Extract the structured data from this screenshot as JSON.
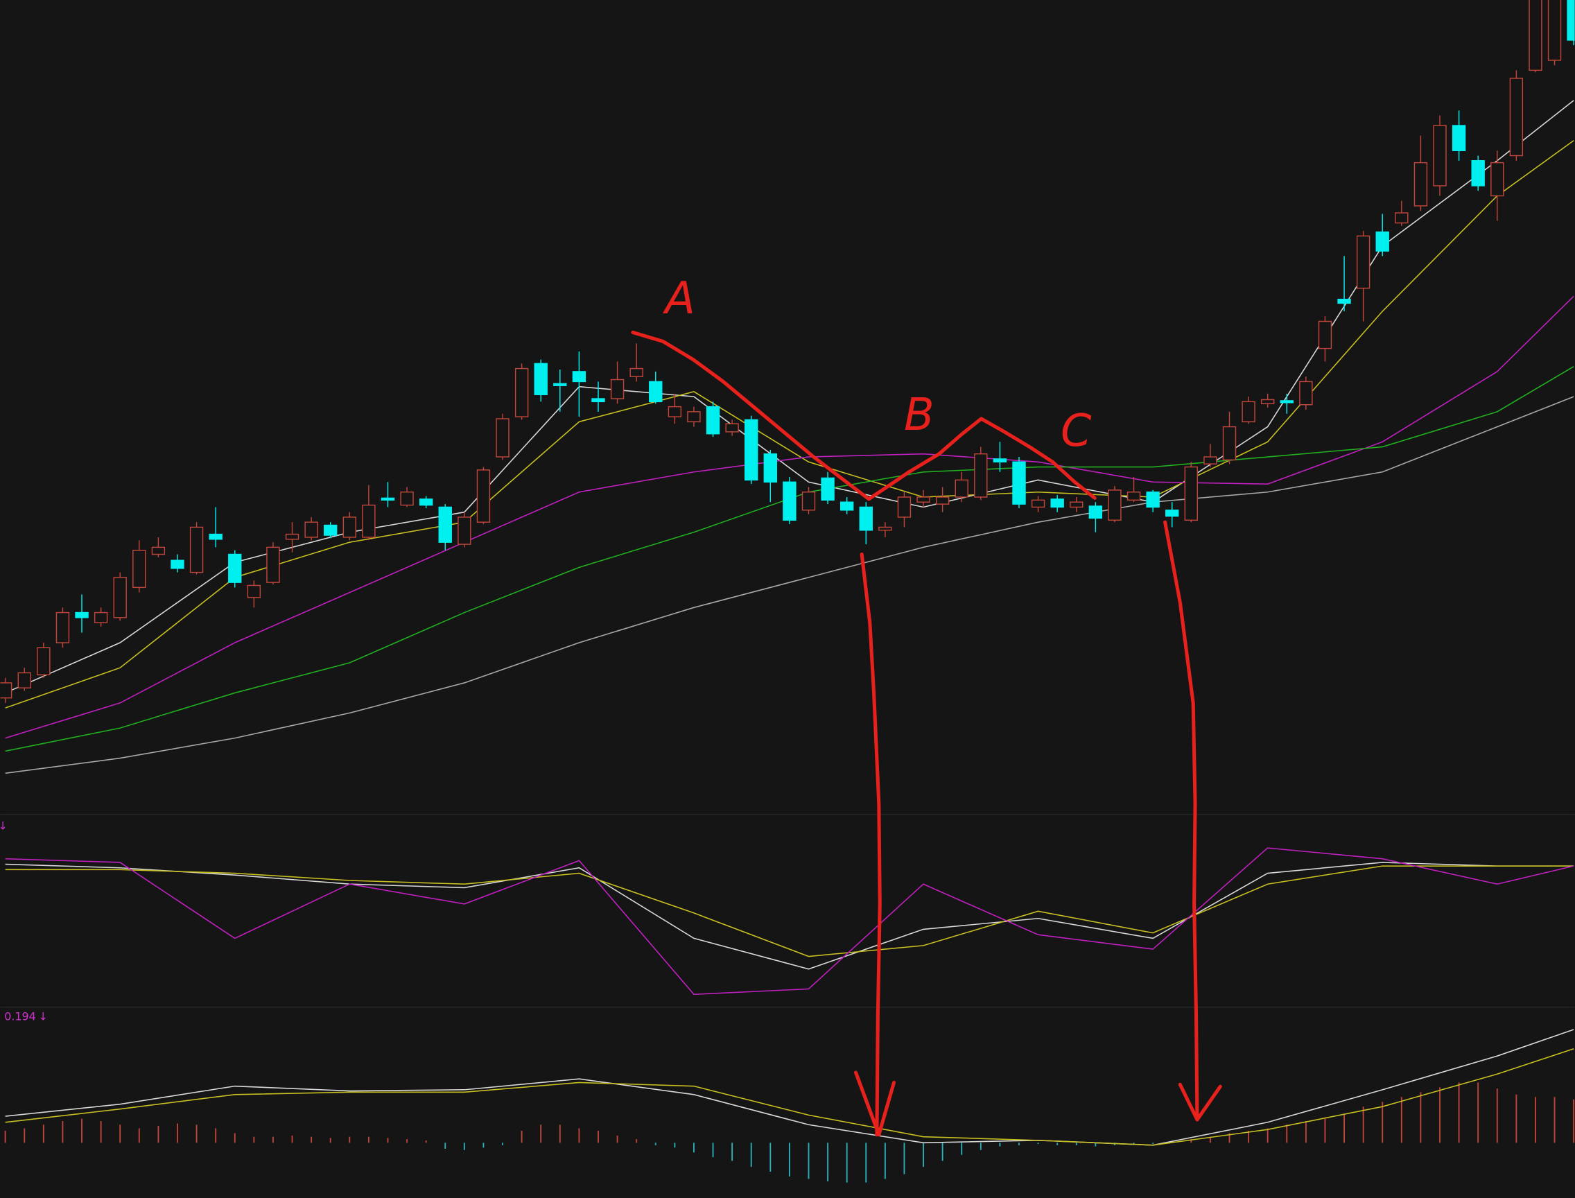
{
  "chart_data": [
    {
      "type": "candlestick",
      "xlim": [
        0,
        82
      ],
      "ylim": [
        0,
        800
      ],
      "up_color": "#c0453a",
      "down_color": "#00f0f0",
      "candles": [
        [
          105,
          125,
          100,
          120
        ],
        [
          115,
          135,
          112,
          130
        ],
        [
          128,
          160,
          125,
          155
        ],
        [
          160,
          195,
          155,
          190
        ],
        [
          190,
          208,
          170,
          185
        ],
        [
          180,
          195,
          176,
          190
        ],
        [
          185,
          230,
          182,
          225
        ],
        [
          215,
          262,
          210,
          252
        ],
        [
          248,
          265,
          245,
          255
        ],
        [
          242,
          248,
          230,
          234
        ],
        [
          230,
          280,
          228,
          275
        ],
        [
          268,
          295,
          255,
          263
        ],
        [
          248,
          252,
          215,
          220
        ],
        [
          205,
          222,
          195,
          217
        ],
        [
          220,
          260,
          218,
          255
        ],
        [
          263,
          280,
          250,
          268
        ],
        [
          265,
          285,
          262,
          280
        ],
        [
          277,
          280,
          264,
          267
        ],
        [
          265,
          290,
          262,
          285
        ],
        [
          265,
          317,
          262,
          297
        ],
        [
          304,
          320,
          295,
          302
        ],
        [
          297,
          315,
          295,
          310
        ],
        [
          303,
          306,
          294,
          297
        ],
        [
          295,
          298,
          252,
          260
        ],
        [
          258,
          290,
          255,
          285
        ],
        [
          280,
          335,
          278,
          332
        ],
        [
          345,
          388,
          342,
          383
        ],
        [
          385,
          438,
          382,
          433
        ],
        [
          438,
          442,
          400,
          407
        ],
        [
          418,
          432,
          390,
          416
        ],
        [
          430,
          450,
          385,
          420
        ],
        [
          403,
          420,
          390,
          400
        ],
        [
          403,
          440,
          398,
          422
        ],
        [
          425,
          458,
          420,
          433
        ],
        [
          420,
          430,
          398,
          400
        ],
        [
          385,
          408,
          378,
          395
        ],
        [
          380,
          395,
          375,
          390
        ],
        [
          395,
          400,
          365,
          368
        ],
        [
          370,
          382,
          366,
          378
        ],
        [
          382,
          386,
          318,
          322
        ],
        [
          348,
          352,
          300,
          320
        ],
        [
          320,
          325,
          278,
          282
        ],
        [
          292,
          315,
          288,
          310
        ],
        [
          324,
          330,
          298,
          302
        ],
        [
          300,
          305,
          288,
          292
        ],
        [
          295,
          300,
          258,
          272
        ],
        [
          272,
          280,
          265,
          275
        ],
        [
          285,
          310,
          275,
          305
        ],
        [
          300,
          312,
          295,
          305
        ],
        [
          298,
          315,
          290,
          305
        ],
        [
          305,
          330,
          300,
          322
        ],
        [
          305,
          355,
          302,
          348
        ],
        [
          343,
          360,
          330,
          340
        ],
        [
          340,
          345,
          294,
          298
        ],
        [
          295,
          306,
          290,
          302
        ],
        [
          303,
          307,
          290,
          295
        ],
        [
          295,
          305,
          290,
          300
        ],
        [
          296,
          300,
          270,
          284
        ],
        [
          282,
          316,
          280,
          312
        ],
        [
          302,
          325,
          300,
          310
        ],
        [
          310,
          312,
          290,
          295
        ],
        [
          292,
          300,
          275,
          286
        ],
        [
          282,
          340,
          280,
          335
        ],
        [
          338,
          358,
          335,
          345
        ],
        [
          342,
          390,
          338,
          375
        ],
        [
          380,
          405,
          378,
          400
        ],
        [
          398,
          408,
          394,
          402
        ],
        [
          401,
          408,
          388,
          399
        ],
        [
          397,
          425,
          392,
          420
        ],
        [
          453,
          485,
          440,
          480
        ],
        [
          502,
          545,
          490,
          498
        ],
        [
          513,
          570,
          480,
          565
        ],
        [
          569,
          587,
          545,
          550
        ],
        [
          578,
          600,
          575,
          588
        ],
        [
          595,
          665,
          590,
          638
        ],
        [
          615,
          685,
          605,
          675
        ],
        [
          675,
          690,
          640,
          650
        ],
        [
          640,
          645,
          610,
          615
        ],
        [
          605,
          650,
          580,
          638
        ],
        [
          645,
          730,
          640,
          722
        ],
        [
          730,
          830,
          728,
          810
        ],
        [
          740,
          830,
          735,
          810
        ],
        [
          810,
          830,
          755,
          760
        ]
      ],
      "series": [
        {
          "color": "#d8d8d8",
          "x": [
            0,
            6,
            12,
            18,
            24,
            30,
            36,
            42,
            48,
            54,
            60,
            66,
            72,
            78,
            82
          ],
          "values": [
            110,
            160,
            240,
            270,
            290,
            415,
            405,
            320,
            295,
            322,
            300,
            375,
            555,
            640,
            700
          ]
        },
        {
          "color": "#c8c020",
          "x": [
            0,
            6,
            12,
            18,
            24,
            30,
            36,
            42,
            48,
            54,
            60,
            66,
            72,
            78,
            82
          ],
          "values": [
            95,
            135,
            225,
            260,
            280,
            380,
            410,
            340,
            305,
            310,
            305,
            360,
            490,
            605,
            660
          ]
        },
        {
          "color": "#c020c0",
          "x": [
            0,
            6,
            12,
            18,
            24,
            30,
            36,
            42,
            48,
            54,
            60,
            66,
            72,
            78,
            82
          ],
          "values": [
            65,
            100,
            160,
            210,
            260,
            310,
            330,
            345,
            348,
            340,
            320,
            318,
            360,
            430,
            505
          ]
        },
        {
          "color": "#20b020",
          "x": [
            0,
            6,
            12,
            18,
            24,
            30,
            36,
            42,
            48,
            54,
            60,
            66,
            72,
            78,
            82
          ],
          "values": [
            52,
            75,
            110,
            140,
            190,
            235,
            270,
            310,
            330,
            335,
            335,
            345,
            355,
            390,
            435
          ]
        },
        {
          "color": "#a8a8a8",
          "x": [
            0,
            6,
            12,
            18,
            24,
            30,
            36,
            42,
            48,
            54,
            60,
            66,
            72,
            78,
            82
          ],
          "values": [
            30,
            45,
            65,
            90,
            120,
            160,
            195,
            225,
            255,
            280,
            300,
            310,
            330,
            375,
            405
          ]
        }
      ]
    },
    {
      "type": "line",
      "xlim": [
        0,
        82
      ],
      "ylim": [
        0,
        100
      ],
      "marker": "↓",
      "series": [
        {
          "color": "#d8d8d8",
          "x": [
            0,
            6,
            12,
            18,
            24,
            30,
            36,
            42,
            48,
            54,
            60,
            66,
            72,
            78,
            82
          ],
          "values": [
            83,
            81,
            77,
            72,
            70,
            81,
            42,
            25,
            47,
            53,
            42,
            78,
            84,
            82,
            82
          ]
        },
        {
          "color": "#c8c020",
          "x": [
            0,
            6,
            12,
            18,
            24,
            30,
            36,
            42,
            48,
            54,
            60,
            66,
            72,
            78,
            82
          ],
          "values": [
            80,
            80,
            78,
            74,
            72,
            78,
            56,
            32,
            38,
            57,
            45,
            72,
            82,
            82,
            82
          ]
        },
        {
          "color": "#c020c0",
          "x": [
            0,
            6,
            12,
            18,
            24,
            30,
            36,
            42,
            48,
            54,
            60,
            66,
            72,
            78,
            82
          ],
          "values": [
            86,
            84,
            42,
            72,
            61,
            85,
            11,
            14,
            72,
            44,
            36,
            92,
            86,
            72,
            82
          ]
        }
      ]
    },
    {
      "type": "macd",
      "xlim": [
        0,
        82
      ],
      "ylim": [
        -0.4,
        1.1
      ],
      "label": "0.194",
      "marker": "↓",
      "up_color": "#c0453a",
      "down_color": "#2ab0b8",
      "histogram": [
        0.1,
        0.12,
        0.15,
        0.18,
        0.2,
        0.18,
        0.15,
        0.12,
        0.14,
        0.16,
        0.15,
        0.12,
        0.08,
        0.05,
        0.05,
        0.06,
        0.05,
        0.04,
        0.05,
        0.05,
        0.04,
        0.03,
        0.02,
        -0.05,
        -0.06,
        -0.04,
        -0.02,
        0.1,
        0.15,
        0.15,
        0.12,
        0.1,
        0.06,
        0.03,
        -0.02,
        -0.04,
        -0.08,
        -0.12,
        -0.15,
        -0.2,
        -0.24,
        -0.28,
        -0.3,
        -0.32,
        -0.33,
        -0.33,
        -0.3,
        -0.26,
        -0.2,
        -0.15,
        -0.1,
        -0.06,
        -0.03,
        -0.02,
        -0.01,
        -0.02,
        -0.02,
        -0.03,
        -0.02,
        -0.01,
        -0.01,
        0.01,
        0.03,
        0.05,
        0.08,
        0.1,
        0.12,
        0.15,
        0.18,
        0.2,
        0.24,
        0.3,
        0.34,
        0.38,
        0.42,
        0.46,
        0.5,
        0.5,
        0.45,
        0.4,
        0.38,
        0.38,
        0.36
      ],
      "series": [
        {
          "color": "#d8d8d8",
          "x": [
            0,
            6,
            12,
            18,
            24,
            30,
            36,
            42,
            48,
            54,
            60,
            66,
            72,
            78,
            82
          ],
          "values": [
            0.22,
            0.32,
            0.47,
            0.43,
            0.44,
            0.53,
            0.4,
            0.15,
            0,
            0.02,
            -0.02,
            0.17,
            0.44,
            0.72,
            0.94
          ]
        },
        {
          "color": "#c8c020",
          "x": [
            0,
            6,
            12,
            18,
            24,
            30,
            36,
            42,
            48,
            54,
            60,
            66,
            72,
            78,
            82
          ],
          "values": [
            0.17,
            0.28,
            0.4,
            0.42,
            0.42,
            0.5,
            0.47,
            0.23,
            0.05,
            0.02,
            -0.02,
            0.11,
            0.3,
            0.57,
            0.78
          ]
        }
      ]
    }
  ],
  "annotations": {
    "labels": [
      "A",
      "B",
      "C"
    ]
  }
}
